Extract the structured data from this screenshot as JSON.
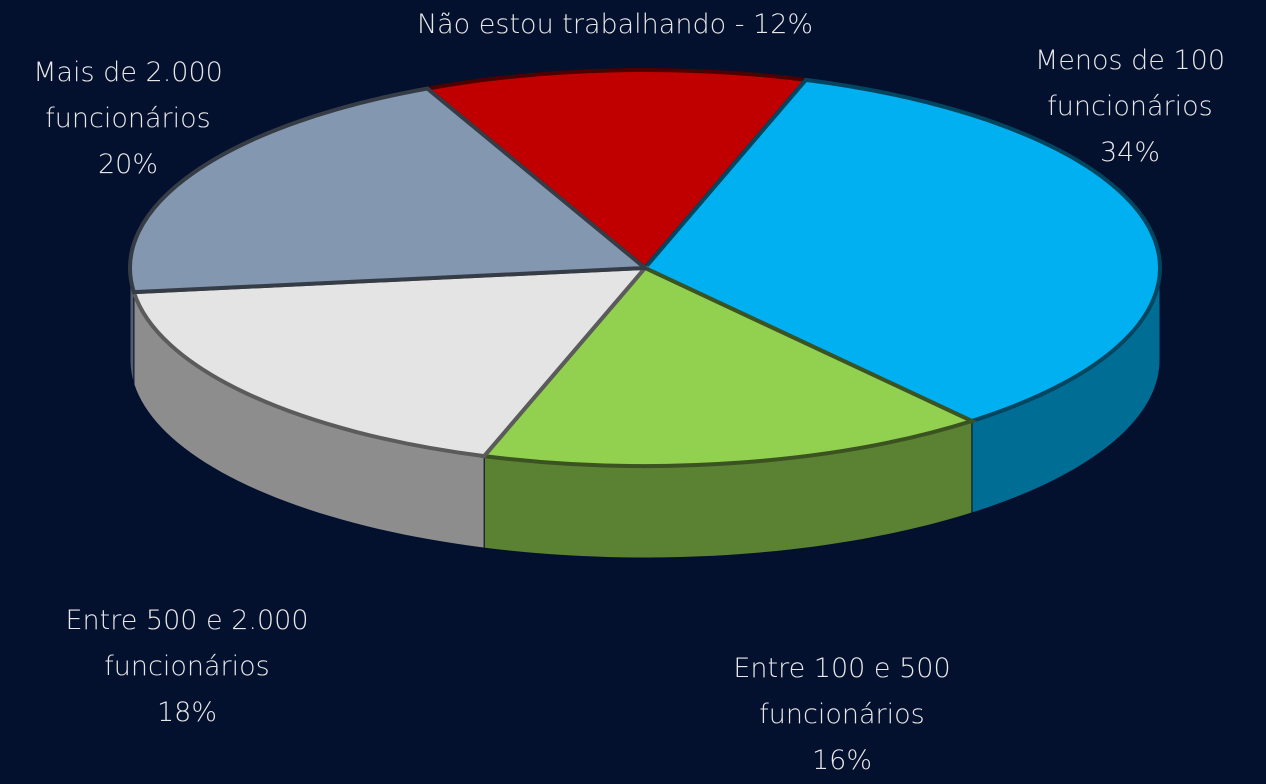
{
  "chart_data": {
    "type": "pie",
    "categories": [
      "Não estou trabalhando -",
      "Menos de 100 funcionários",
      "Entre 100 e 500 funcionários",
      "Entre 500 e 2.000 funcionários",
      "Mais de 2.000 funcionários"
    ],
    "values": [
      12,
      34,
      16,
      18,
      20
    ],
    "value_labels": [
      "12%",
      "34%",
      "16%",
      "18%",
      "20%"
    ],
    "colors": [
      "#c00000",
      "#00b0f0",
      "#92d050",
      "#e4e4e4",
      "#8497b0"
    ]
  }
}
